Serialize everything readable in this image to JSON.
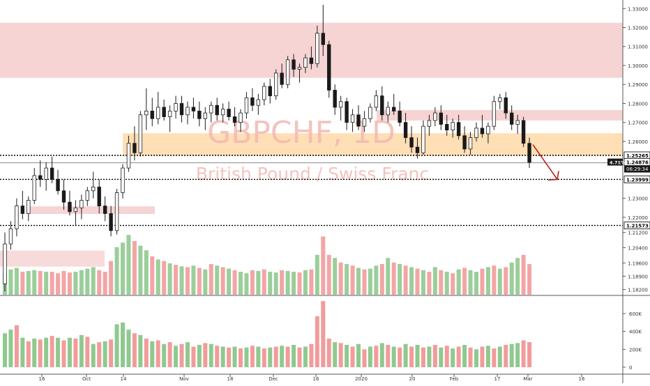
{
  "chart_data": {
    "type": "candlestick",
    "symbol": "GBPCHF, 1D",
    "description": "British Pound / Swiss Franc",
    "colors": {
      "up": "#53b987",
      "down": "#1a1a1a",
      "resistance_zone": "#f4cccc",
      "support_zone": "#ffd9a8",
      "arrow": "#b22222",
      "volume_up": "#8fc98f",
      "volume_down": "#f29b9b",
      "watermark": "#f3b8b2",
      "axis_text": "#333333",
      "level_label_bg": "#ffffff",
      "price_label_bg": "#1a1a1a"
    },
    "x_axis_labels": [
      "16",
      "Oct",
      "14",
      "Nov",
      "18",
      "Dec",
      "16",
      "2020",
      "20",
      "Feb",
      "17",
      "Mar",
      "16"
    ],
    "price_axis_labels": [
      "1.33000",
      "1.32000",
      "1.31000",
      "1.30000",
      "1.29000",
      "1.28000",
      "1.27000",
      "1.26000",
      "1.23000",
      "1.22000",
      "1.21200",
      "1.20400",
      "1.19600",
      "1.18900",
      "1.18200"
    ],
    "level_labels": [
      "1.25265",
      "1.24876",
      "1.23999",
      "1.21573"
    ],
    "current_price_badge": {
      "percent": "4.71%",
      "countdown": "06:29:34"
    },
    "volume_axis_labels": [
      "600K",
      "400K",
      "200K",
      "0"
    ],
    "price_range": [
      1.1785,
      1.3345
    ],
    "zones": [
      {
        "name": "resistance-upper",
        "from": 1.2935,
        "to": 1.3225
      },
      {
        "name": "resistance-mid",
        "from": 1.271,
        "to": 1.2765
      },
      {
        "name": "support-orange",
        "from": 1.2525,
        "to": 1.2643
      },
      {
        "name": "support-lower-left",
        "from": 1.2218,
        "to": 1.2258
      },
      {
        "name": "volume-zone-left",
        "from": 1.194,
        "to": 1.2025
      }
    ],
    "horizontal_levels": [
      1.25265,
      1.24876,
      1.23999,
      1.21573
    ],
    "candles": [
      [
        1.185,
        1.212,
        1.181,
        1.206
      ],
      [
        1.206,
        1.218,
        1.203,
        1.214
      ],
      [
        1.214,
        1.23,
        1.21,
        1.226
      ],
      [
        1.226,
        1.234,
        1.219,
        1.222
      ],
      [
        1.222,
        1.231,
        1.218,
        1.229
      ],
      [
        1.229,
        1.246,
        1.227,
        1.242
      ],
      [
        1.242,
        1.25,
        1.236,
        1.24
      ],
      [
        1.24,
        1.249,
        1.234,
        1.246
      ],
      [
        1.246,
        1.252,
        1.238,
        1.24
      ],
      [
        1.24,
        1.245,
        1.232,
        1.234
      ],
      [
        1.234,
        1.24,
        1.224,
        1.228
      ],
      [
        1.228,
        1.234,
        1.221,
        1.223
      ],
      [
        1.223,
        1.229,
        1.216,
        1.225
      ],
      [
        1.225,
        1.232,
        1.219,
        1.229
      ],
      [
        1.229,
        1.236,
        1.226,
        1.234
      ],
      [
        1.234,
        1.244,
        1.23,
        1.236
      ],
      [
        1.236,
        1.24,
        1.222,
        1.226
      ],
      [
        1.226,
        1.231,
        1.218,
        1.222
      ],
      [
        1.222,
        1.226,
        1.21,
        1.213
      ],
      [
        1.213,
        1.235,
        1.211,
        1.233
      ],
      [
        1.233,
        1.248,
        1.23,
        1.246
      ],
      [
        1.246,
        1.263,
        1.244,
        1.259
      ],
      [
        1.259,
        1.268,
        1.25,
        1.254
      ],
      [
        1.254,
        1.276,
        1.252,
        1.274
      ],
      [
        1.274,
        1.288,
        1.266,
        1.276
      ],
      [
        1.276,
        1.283,
        1.268,
        1.272
      ],
      [
        1.272,
        1.286,
        1.269,
        1.278
      ],
      [
        1.278,
        1.282,
        1.271,
        1.273
      ],
      [
        1.273,
        1.279,
        1.265,
        1.276
      ],
      [
        1.276,
        1.284,
        1.272,
        1.28
      ],
      [
        1.28,
        1.284,
        1.27,
        1.274
      ],
      [
        1.274,
        1.281,
        1.269,
        1.278
      ],
      [
        1.278,
        1.283,
        1.272,
        1.276
      ],
      [
        1.276,
        1.281,
        1.268,
        1.272
      ],
      [
        1.272,
        1.278,
        1.266,
        1.275
      ],
      [
        1.275,
        1.281,
        1.27,
        1.279
      ],
      [
        1.279,
        1.283,
        1.271,
        1.274
      ],
      [
        1.274,
        1.28,
        1.27,
        1.277
      ],
      [
        1.277,
        1.281,
        1.271,
        1.273
      ],
      [
        1.273,
        1.278,
        1.268,
        1.27
      ],
      [
        1.27,
        1.277,
        1.265,
        1.275
      ],
      [
        1.275,
        1.286,
        1.272,
        1.283
      ],
      [
        1.283,
        1.288,
        1.276,
        1.279
      ],
      [
        1.279,
        1.285,
        1.274,
        1.282
      ],
      [
        1.282,
        1.291,
        1.279,
        1.289
      ],
      [
        1.289,
        1.293,
        1.28,
        1.284
      ],
      [
        1.284,
        1.298,
        1.282,
        1.296
      ],
      [
        1.296,
        1.301,
        1.288,
        1.29
      ],
      [
        1.29,
        1.305,
        1.288,
        1.303
      ],
      [
        1.303,
        1.306,
        1.294,
        1.298
      ],
      [
        1.298,
        1.301,
        1.291,
        1.299
      ],
      [
        1.299,
        1.306,
        1.296,
        1.304
      ],
      [
        1.304,
        1.31,
        1.298,
        1.301
      ],
      [
        1.301,
        1.321,
        1.299,
        1.317
      ],
      [
        1.317,
        1.332,
        1.305,
        1.311
      ],
      [
        1.311,
        1.313,
        1.283,
        1.287
      ],
      [
        1.287,
        1.29,
        1.274,
        1.278
      ],
      [
        1.278,
        1.284,
        1.271,
        1.281
      ],
      [
        1.281,
        1.283,
        1.266,
        1.27
      ],
      [
        1.27,
        1.277,
        1.265,
        1.274
      ],
      [
        1.274,
        1.279,
        1.266,
        1.268
      ],
      [
        1.268,
        1.276,
        1.265,
        1.272
      ],
      [
        1.272,
        1.28,
        1.27,
        1.278
      ],
      [
        1.278,
        1.287,
        1.276,
        1.284
      ],
      [
        1.284,
        1.289,
        1.271,
        1.274
      ],
      [
        1.274,
        1.281,
        1.27,
        1.278
      ],
      [
        1.278,
        1.285,
        1.274,
        1.276
      ],
      [
        1.276,
        1.281,
        1.268,
        1.27
      ],
      [
        1.27,
        1.275,
        1.259,
        1.262
      ],
      [
        1.262,
        1.268,
        1.254,
        1.257
      ],
      [
        1.257,
        1.262,
        1.251,
        1.254
      ],
      [
        1.254,
        1.271,
        1.253,
        1.268
      ],
      [
        1.268,
        1.274,
        1.263,
        1.271
      ],
      [
        1.271,
        1.278,
        1.268,
        1.275
      ],
      [
        1.275,
        1.279,
        1.266,
        1.269
      ],
      [
        1.269,
        1.274,
        1.263,
        1.266
      ],
      [
        1.266,
        1.272,
        1.262,
        1.27
      ],
      [
        1.27,
        1.274,
        1.261,
        1.263
      ],
      [
        1.263,
        1.268,
        1.254,
        1.256
      ],
      [
        1.256,
        1.265,
        1.253,
        1.262
      ],
      [
        1.262,
        1.27,
        1.26,
        1.267
      ],
      [
        1.267,
        1.274,
        1.262,
        1.264
      ],
      [
        1.264,
        1.27,
        1.259,
        1.268
      ],
      [
        1.268,
        1.284,
        1.266,
        1.281
      ],
      [
        1.281,
        1.285,
        1.277,
        1.283
      ],
      [
        1.283,
        1.286,
        1.272,
        1.275
      ],
      [
        1.275,
        1.279,
        1.266,
        1.269
      ],
      [
        1.269,
        1.274,
        1.264,
        1.271
      ],
      [
        1.271,
        1.273,
        1.257,
        1.259
      ],
      [
        1.259,
        1.262,
        1.246,
        1.249
      ]
    ],
    "volume_overlay": [
      [
        1,
        0.28
      ],
      [
        1,
        0.33
      ],
      [
        1,
        0.35
      ],
      [
        0,
        0.3
      ],
      [
        1,
        0.31
      ],
      [
        1,
        0.32
      ],
      [
        0,
        0.31
      ],
      [
        1,
        0.3
      ],
      [
        0,
        0.3
      ],
      [
        0,
        0.28
      ],
      [
        0,
        0.31
      ],
      [
        0,
        0.29
      ],
      [
        1,
        0.3
      ],
      [
        1,
        0.32
      ],
      [
        1,
        0.34
      ],
      [
        1,
        0.36
      ],
      [
        0,
        0.32
      ],
      [
        0,
        0.3
      ],
      [
        0,
        0.44
      ],
      [
        1,
        0.62
      ],
      [
        1,
        0.68
      ],
      [
        1,
        0.78
      ],
      [
        0,
        0.7
      ],
      [
        1,
        0.64
      ],
      [
        1,
        0.58
      ],
      [
        0,
        0.5
      ],
      [
        1,
        0.46
      ],
      [
        0,
        0.44
      ],
      [
        1,
        0.41
      ],
      [
        0,
        0.39
      ],
      [
        1,
        0.37
      ],
      [
        0,
        0.36
      ],
      [
        1,
        0.38
      ],
      [
        0,
        0.35
      ],
      [
        1,
        0.33
      ],
      [
        0,
        0.4
      ],
      [
        1,
        0.38
      ],
      [
        0,
        0.36
      ],
      [
        1,
        0.34
      ],
      [
        0,
        0.32
      ],
      [
        1,
        0.3
      ],
      [
        1,
        0.28
      ],
      [
        0,
        0.32
      ],
      [
        1,
        0.31
      ],
      [
        0,
        0.33
      ],
      [
        1,
        0.3
      ],
      [
        1,
        0.29
      ],
      [
        0,
        0.32
      ],
      [
        1,
        0.31
      ],
      [
        1,
        0.3
      ],
      [
        0,
        0.29
      ],
      [
        1,
        0.32
      ],
      [
        0,
        0.33
      ],
      [
        1,
        0.52
      ],
      [
        0,
        0.76
      ],
      [
        0,
        0.52
      ],
      [
        1,
        0.48
      ],
      [
        0,
        0.42
      ],
      [
        1,
        0.4
      ],
      [
        0,
        0.38
      ],
      [
        1,
        0.35
      ],
      [
        0,
        0.33
      ],
      [
        1,
        0.34
      ],
      [
        1,
        0.38
      ],
      [
        0,
        0.4
      ],
      [
        1,
        0.48
      ],
      [
        0,
        0.42
      ],
      [
        1,
        0.4
      ],
      [
        0,
        0.38
      ],
      [
        1,
        0.36
      ],
      [
        0,
        0.34
      ],
      [
        1,
        0.32
      ],
      [
        0,
        0.3
      ],
      [
        1,
        0.36
      ],
      [
        0,
        0.32
      ],
      [
        1,
        0.3
      ],
      [
        0,
        0.28
      ],
      [
        1,
        0.33
      ],
      [
        0,
        0.35
      ],
      [
        1,
        0.32
      ],
      [
        1,
        0.3
      ],
      [
        0,
        0.34
      ],
      [
        1,
        0.36
      ],
      [
        0,
        0.38
      ],
      [
        1,
        0.34
      ],
      [
        0,
        0.36
      ],
      [
        1,
        0.42
      ],
      [
        1,
        0.48
      ],
      [
        0,
        0.52
      ],
      [
        0,
        0.4
      ]
    ],
    "volume_panel": [
      [
        1,
        380
      ],
      [
        1,
        420
      ],
      [
        0,
        470
      ],
      [
        1,
        330
      ],
      [
        0,
        290
      ],
      [
        1,
        320
      ],
      [
        0,
        310
      ],
      [
        1,
        330
      ],
      [
        0,
        350
      ],
      [
        1,
        330
      ],
      [
        0,
        300
      ],
      [
        1,
        330
      ],
      [
        0,
        320
      ],
      [
        1,
        360
      ],
      [
        0,
        340
      ],
      [
        1,
        260
      ],
      [
        0,
        280
      ],
      [
        1,
        290
      ],
      [
        0,
        310
      ],
      [
        1,
        480
      ],
      [
        1,
        500
      ],
      [
        1,
        420
      ],
      [
        0,
        380
      ],
      [
        1,
        360
      ],
      [
        0,
        320
      ],
      [
        1,
        290
      ],
      [
        0,
        300
      ],
      [
        1,
        260
      ],
      [
        0,
        280
      ],
      [
        1,
        240
      ],
      [
        0,
        260
      ],
      [
        1,
        280
      ],
      [
        0,
        230
      ],
      [
        1,
        250
      ],
      [
        0,
        270
      ],
      [
        1,
        260
      ],
      [
        0,
        240
      ],
      [
        1,
        230
      ],
      [
        0,
        220
      ],
      [
        1,
        230
      ],
      [
        0,
        210
      ],
      [
        1,
        220
      ],
      [
        0,
        240
      ],
      [
        1,
        230
      ],
      [
        0,
        210
      ],
      [
        1,
        220
      ],
      [
        0,
        230
      ],
      [
        1,
        240
      ],
      [
        0,
        230
      ],
      [
        1,
        250
      ],
      [
        0,
        220
      ],
      [
        1,
        230
      ],
      [
        0,
        260
      ],
      [
        0,
        570
      ],
      [
        0,
        740
      ],
      [
        0,
        320
      ],
      [
        1,
        280
      ],
      [
        0,
        270
      ],
      [
        1,
        250
      ],
      [
        0,
        230
      ],
      [
        1,
        260
      ],
      [
        0,
        200
      ],
      [
        1,
        230
      ],
      [
        0,
        240
      ],
      [
        1,
        270
      ],
      [
        0,
        250
      ],
      [
        1,
        230
      ],
      [
        0,
        220
      ],
      [
        1,
        260
      ],
      [
        0,
        230
      ],
      [
        1,
        250
      ],
      [
        0,
        220
      ],
      [
        1,
        230
      ],
      [
        0,
        250
      ],
      [
        1,
        220
      ],
      [
        0,
        240
      ],
      [
        1,
        210
      ],
      [
        0,
        230
      ],
      [
        1,
        250
      ],
      [
        0,
        220
      ],
      [
        1,
        200
      ],
      [
        0,
        230
      ],
      [
        1,
        240
      ],
      [
        0,
        210
      ],
      [
        1,
        230
      ],
      [
        0,
        250
      ],
      [
        1,
        260
      ],
      [
        1,
        270
      ],
      [
        0,
        300
      ],
      [
        0,
        280
      ]
    ]
  }
}
